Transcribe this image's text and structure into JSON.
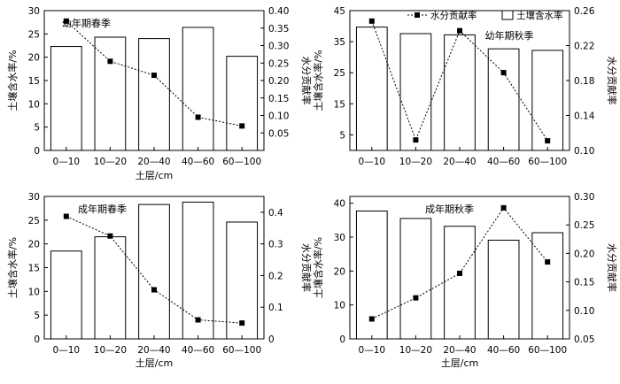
{
  "legend": {
    "line_label": "水分贡献率",
    "bar_label": "土壤含水率"
  },
  "chart_data": [
    {
      "type": "bar",
      "title": "幼年期春季",
      "categories": [
        "0—10",
        "10—20",
        "20—40",
        "40—60",
        "60—100"
      ],
      "bar_series": {
        "name": "土壤含水率",
        "values": [
          22.3,
          24.3,
          24.0,
          26.4,
          20.2
        ]
      },
      "line_series": {
        "name": "水分贡献率",
        "values": [
          0.37,
          0.255,
          0.215,
          0.095,
          0.07
        ]
      },
      "ylabel_left": "土壤含水率/%",
      "ylabel_right": "水分贡献率",
      "ylim_left": [
        0,
        30
      ],
      "yticks_left": [
        0,
        5,
        10,
        15,
        20,
        25,
        30
      ],
      "ytick_labels_left": [
        "0",
        "5",
        "10",
        "15",
        "20",
        "25",
        "30"
      ],
      "ylim_right": [
        0.0,
        0.4
      ],
      "yticks_right": [
        0.05,
        0.1,
        0.15,
        0.2,
        0.25,
        0.3,
        0.35,
        0.4
      ],
      "ytick_labels_right": [
        "0.05",
        "0.10",
        "0.15",
        "0.20",
        "0.25",
        "0.30",
        "0.35",
        "0.40"
      ],
      "xlabel": "土层/cm"
    },
    {
      "type": "bar",
      "title": "幼年期秋季",
      "categories": [
        "0—10",
        "10—20",
        "20—40",
        "40—60",
        "60—100"
      ],
      "bar_series": {
        "name": "土壤含水率",
        "values": [
          39.7,
          37.6,
          37.2,
          32.7,
          32.2
        ]
      },
      "line_series": {
        "name": "水分贡献率",
        "values": [
          0.248,
          0.112,
          0.237,
          0.189,
          0.111
        ]
      },
      "ylabel_left": "土壤含水率/%",
      "ylabel_right": "水分贡献率",
      "ylim_left": [
        0,
        45
      ],
      "yticks_left": [
        5,
        15,
        25,
        35,
        45
      ],
      "ytick_labels_left": [
        "5",
        "15",
        "25",
        "35",
        "45"
      ],
      "ylim_right": [
        0.1,
        0.26
      ],
      "yticks_right": [
        0.1,
        0.14,
        0.18,
        0.22,
        0.26
      ],
      "ytick_labels_right": [
        "0.10",
        "0.14",
        "0.18",
        "0.22",
        "0.26"
      ],
      "xlabel": ""
    },
    {
      "type": "bar",
      "title": "成年期春季",
      "categories": [
        "0—10",
        "10—20",
        "20—40",
        "40—60",
        "60—100"
      ],
      "bar_series": {
        "name": "土壤含水率",
        "values": [
          18.5,
          21.5,
          28.3,
          28.8,
          24.6
        ]
      },
      "line_series": {
        "name": "水分贡献率",
        "values": [
          0.387,
          0.325,
          0.155,
          0.06,
          0.05
        ]
      },
      "ylabel_left": "土壤含水率/%",
      "ylabel_right": "水分贡献率",
      "ylim_left": [
        0,
        30
      ],
      "yticks_left": [
        0,
        5,
        10,
        15,
        20,
        25,
        30
      ],
      "ytick_labels_left": [
        "0",
        "5",
        "10",
        "15",
        "20",
        "25",
        "30"
      ],
      "ylim_right": [
        0,
        0.45
      ],
      "yticks_right": [
        0,
        0.1,
        0.2,
        0.3,
        0.4
      ],
      "ytick_labels_right": [
        "0",
        "0.1",
        "0.2",
        "0.3",
        "0.4"
      ],
      "xlabel": "土层/cm"
    },
    {
      "type": "bar",
      "title": "成年期秋季",
      "categories": [
        "0—10",
        "10—20",
        "20—40",
        "40—60",
        "60—100"
      ],
      "bar_series": {
        "name": "土壤含水率",
        "values": [
          37.7,
          35.5,
          33.2,
          29.1,
          31.3
        ]
      },
      "line_series": {
        "name": "水分贡献率",
        "values": [
          0.085,
          0.122,
          0.165,
          0.28,
          0.185
        ]
      },
      "ylabel_left": "土壤含水率/%",
      "ylabel_right": "水分贡献率",
      "ylim_left": [
        0,
        42
      ],
      "yticks_left": [
        0,
        10,
        20,
        30,
        40
      ],
      "ytick_labels_left": [
        "0",
        "10",
        "20",
        "30",
        "40"
      ],
      "ylim_right": [
        0.05,
        0.3
      ],
      "yticks_right": [
        0.05,
        0.1,
        0.15,
        0.2,
        0.25,
        0.3
      ],
      "ytick_labels_right": [
        "0.05",
        "0.10",
        "0.15",
        "0.20",
        "0.25",
        "0.30"
      ],
      "xlabel": "土层/cm"
    }
  ]
}
